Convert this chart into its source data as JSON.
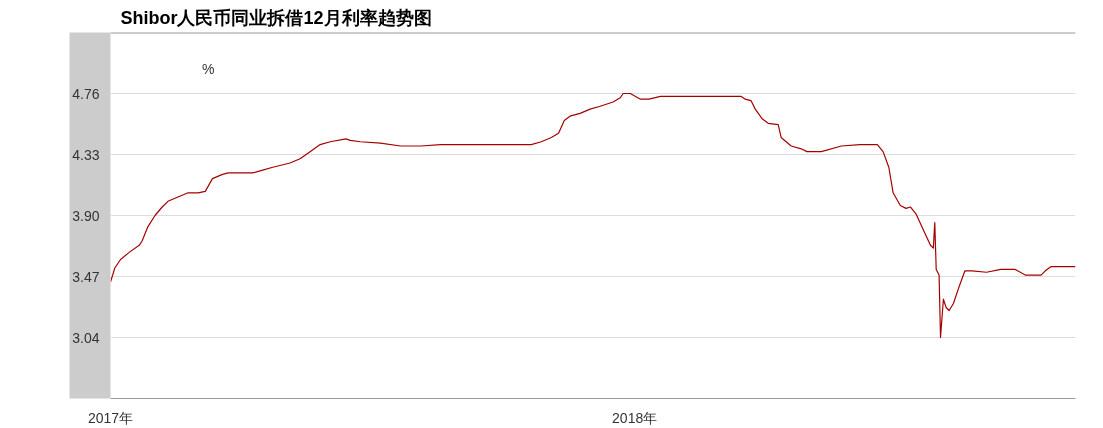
{
  "chart_data": {
    "type": "line",
    "title": "Shibor人民币同业拆借12月利率趋势图",
    "ylabel": "%",
    "x": [
      "2017-01-01",
      "2017-01-04",
      "2017-01-08",
      "2017-01-14",
      "2017-01-21",
      "2017-01-23",
      "2017-01-27",
      "2017-02-01",
      "2017-02-06",
      "2017-02-10",
      "2017-02-17",
      "2017-02-24",
      "2017-03-03",
      "2017-03-08",
      "2017-03-13",
      "2017-03-20",
      "2017-03-24",
      "2017-04-10",
      "2017-04-17",
      "2017-04-24",
      "2017-05-06",
      "2017-05-13",
      "2017-05-20",
      "2017-05-27",
      "2017-06-03",
      "2017-06-14",
      "2017-06-17",
      "2017-06-24",
      "2017-07-08",
      "2017-07-22",
      "2017-08-05",
      "2017-08-19",
      "2017-09-16",
      "2017-10-21",
      "2017-10-28",
      "2017-11-04",
      "2017-11-09",
      "2017-11-13",
      "2017-11-17",
      "2017-11-24",
      "2017-12-01",
      "2017-12-08",
      "2017-12-17",
      "2017-12-22",
      "2017-12-24",
      "2017-12-29",
      "2018-01-05",
      "2018-01-11",
      "2018-01-19",
      "2018-01-30",
      "2018-02-16",
      "2018-02-23",
      "2018-03-16",
      "2018-03-19",
      "2018-03-23",
      "2018-03-26",
      "2018-03-31",
      "2018-04-04",
      "2018-04-11",
      "2018-04-13",
      "2018-04-20",
      "2018-04-27",
      "2018-05-01",
      "2018-05-11",
      "2018-05-25",
      "2018-06-07",
      "2018-06-19",
      "2018-06-23",
      "2018-06-27",
      "2018-06-30",
      "2018-07-05",
      "2018-07-09",
      "2018-07-12",
      "2018-07-16",
      "2018-07-21",
      "2018-07-26",
      "2018-07-28",
      "2018-07-29",
      "2018-07-30",
      "2018-08-01",
      "2018-08-02",
      "2018-08-04",
      "2018-08-06",
      "2018-08-08",
      "2018-08-11",
      "2018-08-15",
      "2018-08-19",
      "2018-08-24",
      "2018-09-03",
      "2018-09-13",
      "2018-09-23",
      "2018-09-30",
      "2018-10-11",
      "2018-10-14",
      "2018-10-18",
      "2018-11-04"
    ],
    "series": [
      {
        "color": "#a50000",
        "values": [
          3.43,
          3.53,
          3.59,
          3.64,
          3.69,
          3.72,
          3.82,
          3.9,
          3.96,
          4.0,
          4.03,
          4.06,
          4.06,
          4.07,
          4.16,
          4.19,
          4.2,
          4.2,
          4.22,
          4.24,
          4.27,
          4.3,
          4.35,
          4.4,
          4.42,
          4.44,
          4.43,
          4.42,
          4.41,
          4.39,
          4.39,
          4.4,
          4.4,
          4.4,
          4.42,
          4.45,
          4.48,
          4.57,
          4.6,
          4.62,
          4.65,
          4.67,
          4.7,
          4.73,
          4.76,
          4.76,
          4.72,
          4.72,
          4.74,
          4.74,
          4.74,
          4.74,
          4.74,
          4.72,
          4.71,
          4.65,
          4.58,
          4.55,
          4.54,
          4.45,
          4.39,
          4.37,
          4.35,
          4.35,
          4.39,
          4.4,
          4.4,
          4.35,
          4.24,
          4.06,
          3.97,
          3.95,
          3.96,
          3.91,
          3.8,
          3.69,
          3.67,
          3.85,
          3.52,
          3.48,
          3.04,
          3.31,
          3.25,
          3.23,
          3.28,
          3.4,
          3.51,
          3.51,
          3.5,
          3.52,
          3.52,
          3.48,
          3.48,
          3.51,
          3.54,
          3.54
        ]
      }
    ],
    "xlim": [
      "2017-01-01",
      "2018-11-04"
    ],
    "xticks": [
      {
        "value": "2017-01-01",
        "label": "2017年"
      },
      {
        "value": "2018-01-01",
        "label": "2018年"
      }
    ],
    "ylim": [
      2.61,
      5.19
    ],
    "yticks": [
      3.04,
      3.47,
      {
        "value": 3.9,
        "label": "3.90"
      },
      4.33,
      4.76
    ],
    "grid": "y",
    "marker": "none",
    "line_style": "solid"
  }
}
